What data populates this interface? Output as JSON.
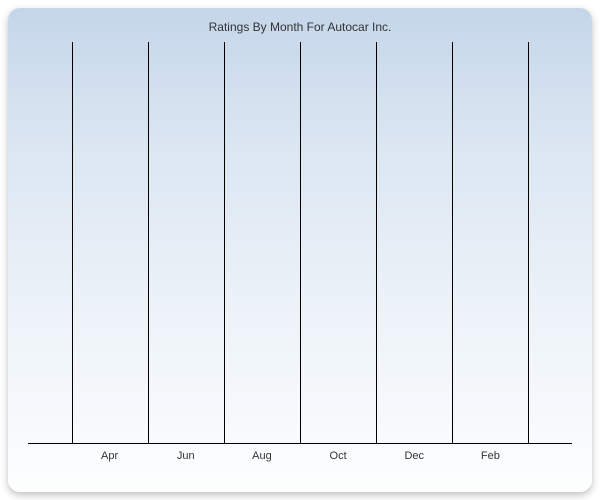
{
  "chart": {
    "type": "line",
    "title": "Ratings By Month For Autocar Inc.",
    "title_fontsize": 12,
    "title_color": "#333333",
    "background_gradient": {
      "type": "linear",
      "direction": "to bottom",
      "stops": [
        "#c5d6ea",
        "#dce7f2",
        "#f0f5fa",
        "#fdfefe"
      ]
    },
    "border_radius": 12,
    "shadow": "0 3px 8px rgba(0,0,0,0.25)",
    "x_axis": {
      "gridline_positions_pct": [
        8,
        22,
        36,
        50,
        64,
        78,
        92
      ],
      "gridline_color": "#000000",
      "gridline_width": 1,
      "tick_labels": [
        "Apr",
        "Jun",
        "Aug",
        "Oct",
        "Dec",
        "Feb"
      ],
      "tick_positions_pct": [
        15,
        29,
        43,
        57,
        71,
        85
      ],
      "label_fontsize": 11,
      "label_color": "#333333",
      "axis_line_color": "#000000"
    },
    "y_axis": {
      "visible": false
    },
    "series": []
  }
}
